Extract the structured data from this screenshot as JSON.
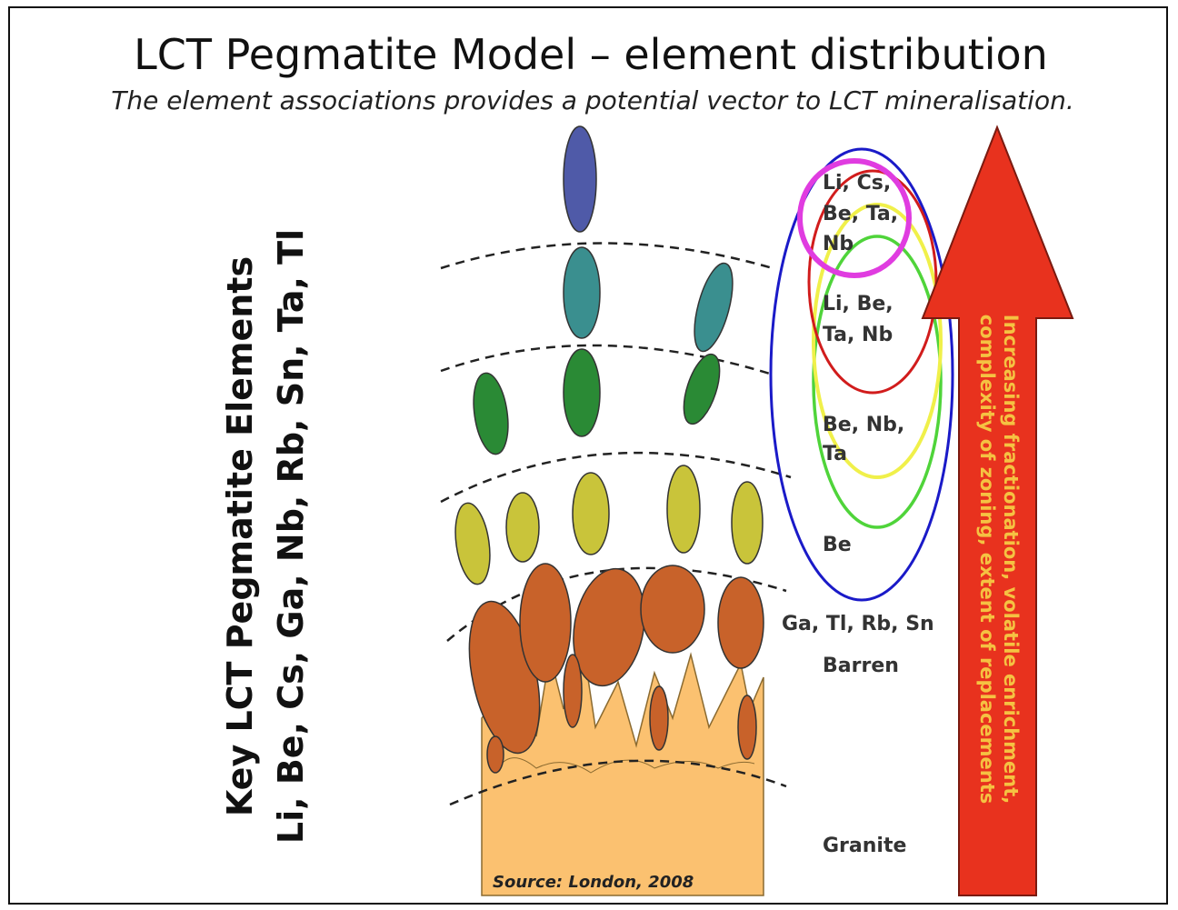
{
  "title": "LCT Pegmatite Model – element distribution",
  "subtitle": "The element associations provides a potential vector to LCT mineralisation.",
  "side_label": {
    "lines": [
      "Key LCT Pegmatite Elements",
      "Li, Be, Cs, Ga, Nb, Rb, Sn, Ta, Tl"
    ]
  },
  "zones": [
    {
      "lines": [
        "Li, Cs,",
        "Be, Ta,",
        "Nb"
      ]
    },
    {
      "lines": [
        "Li, Be,",
        "Ta, Nb"
      ]
    },
    {
      "lines": [
        "Be, Nb,",
        "Ta"
      ]
    },
    {
      "lines": [
        "Be"
      ]
    },
    {
      "lines": [
        "Ga, Tl, Rb, Sn"
      ]
    },
    {
      "lines": [
        "Barren"
      ]
    },
    {
      "lines": [
        "Granite"
      ]
    }
  ],
  "arrow_label": {
    "lines": [
      "Increasing fractionation, volatile enrichment,",
      "complexity of zoning, extent of replacements"
    ]
  },
  "source": "Source: London, 2008"
}
